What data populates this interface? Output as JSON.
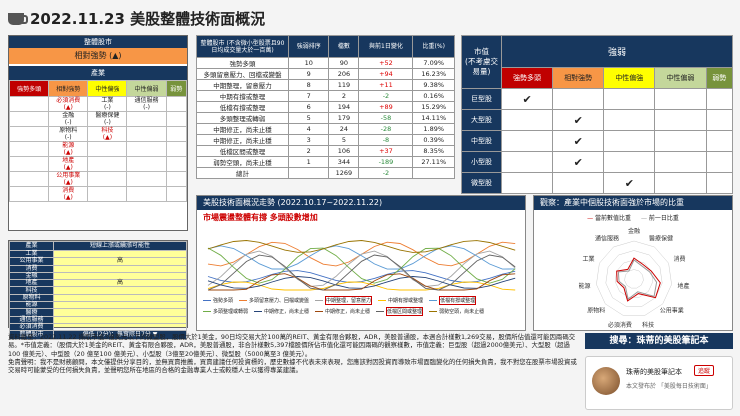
{
  "title": "2022.11.23 美股整體技術面概況",
  "left": {
    "header": "整體股市",
    "overall": "相對強勢 (▲)",
    "category_header": "產業",
    "columns": [
      "強勢多頭",
      "相對強勢",
      "中性偏強",
      "中性偏弱",
      "弱勢"
    ],
    "cells": [
      [
        "",
        "必須消費\n(▲)",
        "工業\n(-)",
        "通信服務\n(-)",
        ""
      ],
      [
        "",
        "金融\n(-)",
        "醫療保健\n(-)",
        "",
        ""
      ],
      [
        "",
        "原物料\n(-)",
        "科技\n(▲)",
        "",
        ""
      ],
      [
        "",
        "能源\n(▲)",
        "",
        "",
        ""
      ],
      [
        "",
        "地產\n(▲)",
        "",
        "",
        ""
      ],
      [
        "",
        "公用事業\n(▲)",
        "",
        "",
        ""
      ],
      [
        "",
        "消費\n(▲)",
        "",
        "",
        ""
      ]
    ]
  },
  "left_bottom": {
    "header": [
      "產業",
      "短線上漲或續漲可能性"
    ],
    "rows": [
      [
        "工業",
        ""
      ],
      [
        "公用事業",
        "高"
      ],
      [
        "消費",
        ""
      ],
      [
        "金融",
        ""
      ],
      [
        "地產",
        "高"
      ],
      [
        "科技",
        ""
      ],
      [
        "原物料",
        ""
      ],
      [
        "能源",
        ""
      ],
      [
        "醫療",
        ""
      ],
      [
        "通信服務",
        ""
      ],
      [
        "必須消費",
        ""
      ]
    ],
    "footer": [
      "整體股市",
      "偏低 (2分)：無實際日7分 ▼"
    ]
  },
  "middle": {
    "header": [
      "整體股市 (不含微小型股票且90日均成交量大於一百萬)",
      "強弱排序",
      "檔數",
      "與前1日變化",
      "比重(%)"
    ],
    "rows": [
      [
        "強勢多頭",
        "10",
        "90",
        "+52",
        "7.09%"
      ],
      [
        "多頭留意壓力、回檔或變盤",
        "9",
        "206",
        "+94",
        "16.23%"
      ],
      [
        "中期整理，留意壓力",
        "8",
        "119",
        "+11",
        "9.38%"
      ],
      [
        "中期有撐或整理",
        "7",
        "2",
        "-2",
        "0.16%"
      ],
      [
        "低檔有撐或整理",
        "6",
        "194",
        "+89",
        "15.29%"
      ],
      [
        "多頭整理或轉弱",
        "5",
        "179",
        "-58",
        "14.11%"
      ],
      [
        "中期修正，尚未止穩",
        "4",
        "24",
        "-28",
        "1.89%"
      ],
      [
        "中期修正，尚未止穩",
        "3",
        "5",
        "-8",
        "0.39%"
      ],
      [
        "低檔区間或整理",
        "2",
        "106",
        "+37",
        "8.35%"
      ],
      [
        "弱勢空頭，尚未止穩",
        "1",
        "344",
        "-189",
        "27.11%"
      ],
      [
        "總計",
        "",
        "1269",
        "-2",
        ""
      ]
    ]
  },
  "right": {
    "corner": "市值\n(不考慮交易量)",
    "header": "強弱",
    "columns": [
      "強勢多頭",
      "相對強勢",
      "中性偏強",
      "中性偏弱",
      "弱勢"
    ],
    "rows": [
      {
        "label": "巨型股",
        "checks": [
          1,
          0,
          0,
          0,
          0
        ]
      },
      {
        "label": "大型股",
        "checks": [
          0,
          1,
          0,
          0,
          0
        ]
      },
      {
        "label": "中型股",
        "checks": [
          0,
          1,
          0,
          0,
          0
        ]
      },
      {
        "label": "小型股",
        "checks": [
          0,
          1,
          0,
          0,
          0
        ]
      },
      {
        "label": "微型股",
        "checks": [
          0,
          0,
          1,
          0,
          0
        ]
      }
    ],
    "check_mark": "✔"
  },
  "trend": {
    "header": "美股技術面概況走勢 (2022.10.17~2022.11.22)",
    "subtitle": "市場震盪整體有撐  多頭股數增加",
    "legend": [
      "強勢多頭",
      "多頭留意壓力、回檔或變盤",
      "中期整理，留意壓力",
      "中期有撐或整理",
      "低檔有撐或整理",
      "多頭整理或轉弱",
      "中期修正，尚未止穩",
      "中期修正，尚未止穩",
      "低檔区間或整理",
      "弱勢空頭，尚未止穩"
    ],
    "colors": [
      "#4472c4",
      "#ed7d31",
      "#a5a5a5",
      "#ffc000",
      "#5b9bd5",
      "#70ad47",
      "#264478",
      "#9e480e",
      "#636363",
      "#997300"
    ]
  },
  "radar": {
    "header": "觀察：產業中個股技術面強於市場的比重",
    "legend_current": "當前數值比重",
    "legend_prev": "前一日比重",
    "axes": [
      "金融",
      "醫療保健",
      "消費",
      "地產",
      "公用事業",
      "科技",
      "必須消費",
      "原物料",
      "能源",
      "工業",
      "通信服務"
    ],
    "current": [
      0.55,
      0.45,
      0.5,
      0.7,
      0.75,
      0.4,
      0.6,
      0.35,
      0.45,
      0.5,
      0.3
    ],
    "prev": [
      0.5,
      0.4,
      0.45,
      0.6,
      0.7,
      0.35,
      0.55,
      0.3,
      0.4,
      0.45,
      0.25
    ]
  },
  "footnote": "資料截至：2022.11.22 擷取市值3億美元以下的微型股，股價大於1美金，90日均交易大於100萬的REIT、黃金有限合夥股，ADR，美股普通股，本週合計樣數1,269交易，股價所佔值還可能因兩碼交易。*市值定義：（股價大於1美金的REIT、黃金有限合夥股，ADR，美股普通股，非合計樣數5,397檔股價所佔市值化還可能因兩碼的觀察樣數，市值定義：巨型股（超過2000億美元）、大型股（超過 100 億美元）、中型股（20 億至100 億美元）、小型股（3億至20億美元）、微型股（5000萬至3 億美元）。\n免責聲明：我不是財務顧問，本文僅提供分享目的，並無買賣推薦，買賣建議任何投資標的，歷史數據不代表未來表現，您應該對因投資而導致市場面臨變化的任何損失負責，我不對您在股票市場投資或交易時可能蒙受的任何損失負責，並聲明您所在地區的合格的金融專業人士或較穩人士以獲得專業建議。",
  "search": "搜尋：珠蒂的美股筆記本",
  "card": {
    "name": "珠蒂的美股筆記本",
    "button": "追蹤",
    "sub": "本文發布於 「美股每日技術面」"
  }
}
